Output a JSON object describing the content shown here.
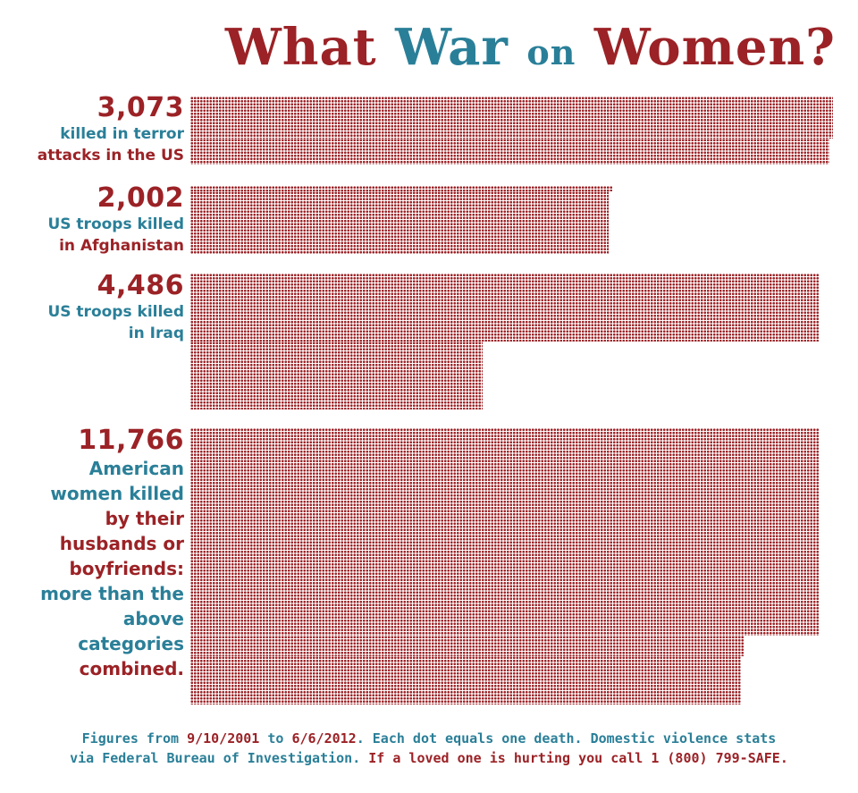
{
  "title": {
    "part1": "What",
    "part2": "War",
    "part3": "on",
    "part4": "Women?"
  },
  "chart_data": {
    "type": "bar",
    "title": "What War on Women?",
    "categories": [
      "killed in terror attacks in the US",
      "US troops killed in Afghanistan",
      "US troops killed in Iraq",
      "American women killed by their husbands or boyfriends: more than the above categories combined."
    ],
    "values": [
      3073,
      2002,
      4486,
      11766
    ],
    "unit": "Each dot equals one death",
    "colors": {
      "dots": "#9b2226",
      "accent_blue": "#2a7f98",
      "accent_red": "#9b2226"
    }
  },
  "rows": [
    {
      "count": "3,073",
      "lines": [
        "killed in terror",
        "attacks in the US"
      ]
    },
    {
      "count": "2,002",
      "lines": [
        "US troops killed",
        "in Afghanistan"
      ]
    },
    {
      "count": "4,486",
      "lines": [
        "US troops killed",
        "in Iraq"
      ]
    },
    {
      "count": "11,766",
      "lines": [
        "American",
        "women killed",
        "by their",
        "husbands or",
        "boyfriends:",
        "more than the",
        "above",
        "categories",
        "combined."
      ]
    }
  ],
  "footer": {
    "line1_a": "Figures from ",
    "line1_b": "9/10/2001",
    "line1_c": " to ",
    "line1_d": "6/6/2012",
    "line1_e": ". Each dot equals one death. Domestic violence stats",
    "line2_a": "via Federal Bureau of Investigation. ",
    "line2_b": "If a loved one is hurting you call 1 (800) 799-SAFE."
  }
}
